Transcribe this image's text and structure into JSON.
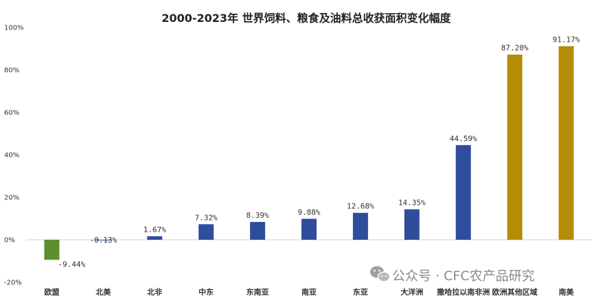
{
  "chart_data": {
    "type": "bar",
    "title": "2000-2023年 世界饲料、粮食及油料总收获面积变化幅度",
    "categories": [
      "欧盟",
      "北美",
      "北非",
      "中东",
      "东南亚",
      "南亚",
      "东亚",
      "大洋洲",
      "撒哈拉以南非洲",
      "欧洲其他区域",
      "南美"
    ],
    "values": [
      -9.44,
      -0.13,
      1.67,
      7.32,
      8.39,
      9.88,
      12.68,
      14.35,
      44.59,
      87.2,
      91.17
    ],
    "data_labels": [
      "-9.44%",
      "-0.13%",
      "1.67%",
      "7.32%",
      "8.39%",
      "9.88%",
      "12.68%",
      "14.35%",
      "44.59%",
      "87.20%",
      "91.17%"
    ],
    "bar_colors": [
      "#5b8f2f",
      "#2e4e9c",
      "#2e4e9c",
      "#2e4e9c",
      "#2e4e9c",
      "#2e4e9c",
      "#2e4e9c",
      "#2e4e9c",
      "#2e4e9c",
      "#b58c08",
      "#b58c08"
    ],
    "yticks": [
      -20,
      0,
      20,
      40,
      60,
      80,
      100
    ],
    "ytick_labels": [
      "-20%",
      "0%",
      "20%",
      "40%",
      "60%",
      "80%",
      "100%"
    ],
    "ylim": [
      -20,
      100
    ],
    "xlabel": "",
    "ylabel": "",
    "grid": false,
    "legend": "none"
  },
  "watermark": {
    "icon": "wechat-icon",
    "text": "公众号 · CFC农产品研究"
  }
}
